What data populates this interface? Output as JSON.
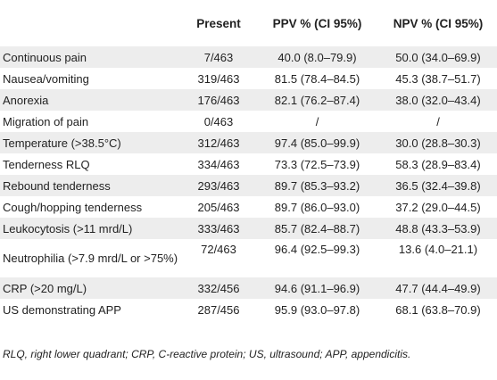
{
  "table": {
    "headers": [
      "",
      "Present",
      "PPV % (CI 95%)",
      "NPV % (CI 95%)"
    ],
    "rows": [
      [
        "Continuous pain",
        "7/463",
        "40.0 (8.0–79.9)",
        "50.0 (34.0–69.9)"
      ],
      [
        "Nausea/vomiting",
        "319/463",
        "81.5 (78.4–84.5)",
        "45.3 (38.7–51.7)"
      ],
      [
        "Anorexia",
        "176/463",
        "82.1 (76.2–87.4)",
        "38.0 (32.0–43.4)"
      ],
      [
        "Migration of pain",
        "0/463",
        "/",
        "/"
      ],
      [
        "Temperature (>38.5°C)",
        "312/463",
        "97.4 (85.0–99.9)",
        "30.0 (28.8–30.3)"
      ],
      [
        "Tenderness RLQ",
        "334/463",
        "73.3 (72.5–73.9)",
        "58.3 (28.9–83.4)"
      ],
      [
        "Rebound tenderness",
        "293/463",
        "89.7 (85.3–93.2)",
        "36.5 (32.4–39.8)"
      ],
      [
        "Cough/hopping tenderness",
        "205/463",
        "89.7 (86.0–93.0)",
        "37.2 (29.0–44.5)"
      ],
      [
        "Leukocytosis (>11 mrd/L)",
        "333/463",
        "85.7 (82.4–88.7)",
        "48.8 (43.3–53.9)"
      ],
      [
        "Neutrophilia (>7.9 mrd/L or >75%)",
        "72/463",
        "96.4 (92.5–99.3)",
        "13.6 (4.0–21.1)"
      ],
      [
        "CRP (>20 mg/L)",
        "332/456",
        "94.6 (91.1–96.9)",
        "47.7 (44.4–49.9)"
      ],
      [
        "US demonstrating APP",
        "287/456",
        "95.9 (93.0–97.8)",
        "68.1 (63.8–70.9)"
      ]
    ]
  },
  "footnote": "RLQ, right lower quadrant; CRP, C-reactive protein; US, ultrasound; APP, appendicitis."
}
